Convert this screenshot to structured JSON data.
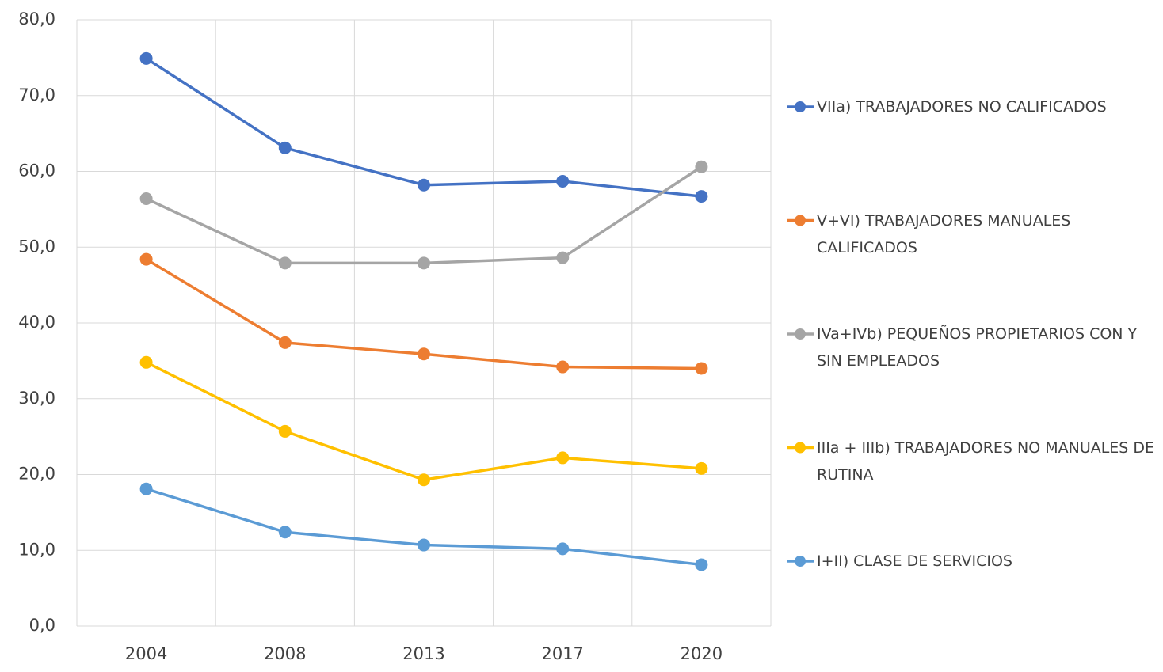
{
  "chart_data": {
    "type": "line",
    "categories": [
      "2004",
      "2008",
      "2013",
      "2017",
      "2020"
    ],
    "series": [
      {
        "name": "VIIa) TRABAJADORES NO CALIFICADOS",
        "color": "#4472c4",
        "values": [
          74.9,
          63.1,
          58.2,
          58.7,
          56.7
        ]
      },
      {
        "name": "V+VI) TRABAJADORES MANUALES CALIFICADOS",
        "color": "#ed7d31",
        "values": [
          48.4,
          37.4,
          35.9,
          34.2,
          34.0
        ]
      },
      {
        "name": "IVa+IVb) PEQUEÑOS PROPIETARIOS CON Y SIN EMPLEADOS",
        "color": "#a5a5a5",
        "values": [
          56.4,
          47.9,
          47.9,
          48.6,
          60.6
        ]
      },
      {
        "name": "IIIa + IIIb) TRABAJADORES NO MANUALES DE RUTINA",
        "color": "#ffc000",
        "values": [
          34.8,
          25.7,
          19.3,
          22.2,
          20.8
        ]
      },
      {
        "name": "I+II) CLASE DE SERVICIOS",
        "color": "#5b9bd5",
        "values": [
          18.1,
          12.4,
          10.7,
          10.2,
          8.1
        ]
      }
    ],
    "ylim": [
      0,
      80
    ],
    "yticks": [
      {
        "value": 0,
        "label": "0,0"
      },
      {
        "value": 10,
        "label": "10,0"
      },
      {
        "value": 20,
        "label": "20,0"
      },
      {
        "value": 30,
        "label": "30,0"
      },
      {
        "value": 40,
        "label": "40,0"
      },
      {
        "value": 50,
        "label": "50,0"
      },
      {
        "value": 60,
        "label": "60,0"
      },
      {
        "value": 70,
        "label": "70,0"
      },
      {
        "value": 80,
        "label": "80,0"
      }
    ],
    "grid": true,
    "legend": "right"
  }
}
